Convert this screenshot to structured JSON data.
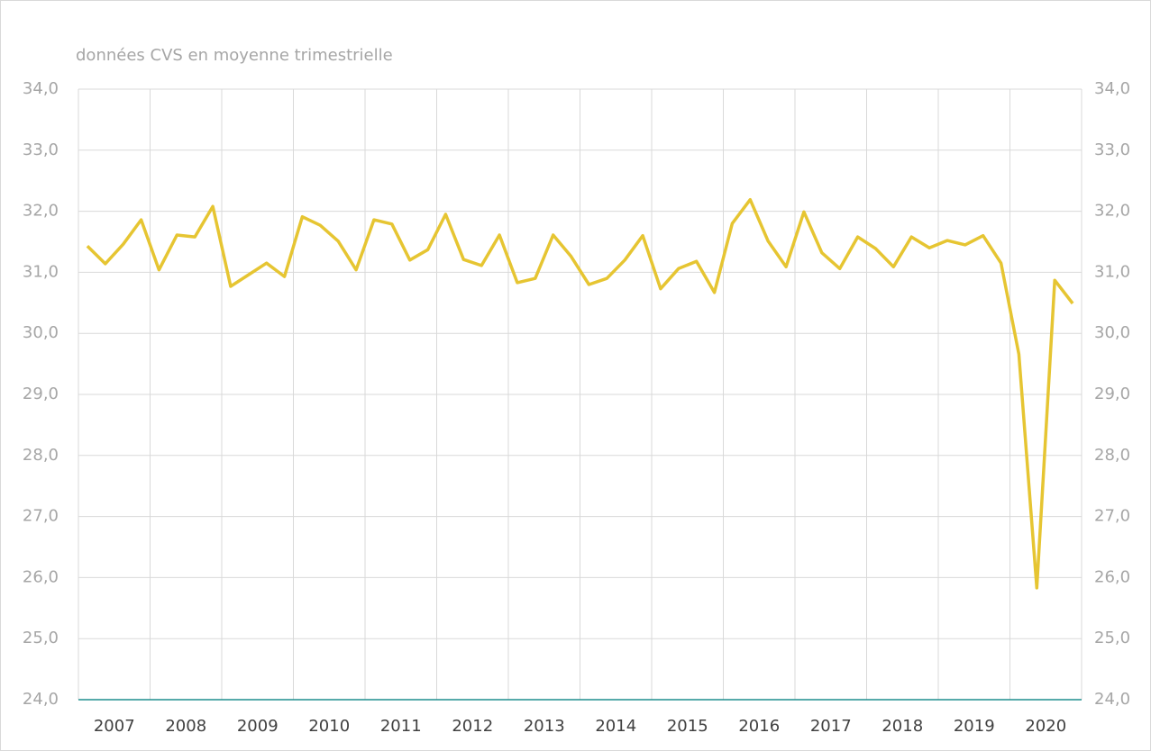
{
  "chart_data": {
    "type": "line",
    "subtitle": "données CVS en moyenne trimestrielle",
    "categories": [
      null,
      "2007",
      null,
      null,
      null,
      "2008",
      null,
      null,
      null,
      "2009",
      null,
      null,
      null,
      "2010",
      null,
      null,
      null,
      "2011",
      null,
      null,
      null,
      "2012",
      null,
      null,
      null,
      "2013",
      null,
      null,
      null,
      "2014",
      null,
      null,
      null,
      "2015",
      null,
      null,
      null,
      "2016",
      null,
      null,
      null,
      "2017",
      null,
      null,
      null,
      "2018",
      null,
      null,
      null,
      "2019",
      null,
      null,
      null,
      "2020",
      null,
      null
    ],
    "series": [
      {
        "name": null,
        "color": "#e6c532",
        "values": [
          31.43,
          31.14,
          31.46,
          31.86,
          31.04,
          31.61,
          31.58,
          32.08,
          30.77,
          30.96,
          31.15,
          30.93,
          31.91,
          31.77,
          31.51,
          31.04,
          31.86,
          31.79,
          31.2,
          31.37,
          31.95,
          31.21,
          31.11,
          31.61,
          30.83,
          30.9,
          31.61,
          31.26,
          30.8,
          30.9,
          31.2,
          31.6,
          30.73,
          31.06,
          31.18,
          30.67,
          31.8,
          32.19,
          31.51,
          31.09,
          31.99,
          31.32,
          31.06,
          31.58,
          31.39,
          31.09,
          31.58,
          31.4,
          31.52,
          31.45,
          31.6,
          31.15,
          29.66,
          25.83,
          30.87,
          30.49
        ]
      }
    ],
    "ylim": [
      24,
      34
    ],
    "yticks": [
      {
        "value": 24,
        "label": "24,0"
      },
      {
        "value": 25,
        "label": "25,0"
      },
      {
        "value": 26,
        "label": "26,0"
      },
      {
        "value": 27,
        "label": "27,0"
      },
      {
        "value": 28,
        "label": "28,0"
      },
      {
        "value": 29,
        "label": "29,0"
      },
      {
        "value": 30,
        "label": "30,0"
      },
      {
        "value": 31,
        "label": "31,0"
      },
      {
        "value": 32,
        "label": "32,0"
      },
      {
        "value": 33,
        "label": "33,0"
      },
      {
        "value": 34,
        "label": "34,0"
      }
    ],
    "y2lim": [
      24,
      34
    ],
    "y2ticks": [
      {
        "value": 24,
        "label": "24,0"
      },
      {
        "value": 25,
        "label": "25,0"
      },
      {
        "value": 26,
        "label": "26,0"
      },
      {
        "value": 27,
        "label": "27,0"
      },
      {
        "value": 28,
        "label": "28,0"
      },
      {
        "value": 29,
        "label": "29,0"
      },
      {
        "value": 30,
        "label": "30,0"
      },
      {
        "value": 31,
        "label": "31,0"
      },
      {
        "value": 32,
        "label": "32,0"
      },
      {
        "value": 33,
        "label": "33,0"
      },
      {
        "value": 34,
        "label": "34,0"
      }
    ],
    "grid": true
  }
}
